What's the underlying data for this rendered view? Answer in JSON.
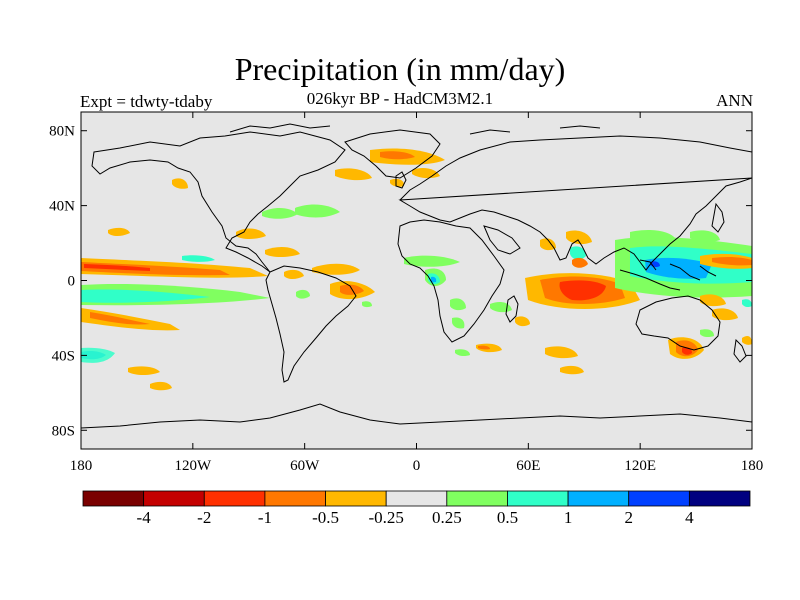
{
  "title": "Precipitation (in mm/day)",
  "subtitle": "026kyr BP - HadCM3M2.1",
  "left_label": "Expt = tdwty-tdaby",
  "right_label": "ANN",
  "colors": {
    "background": "#e6e6e6",
    "coast": "#000000"
  },
  "axes": {
    "lat_ticks": [
      {
        "value": 80,
        "label": "80N"
      },
      {
        "value": 40,
        "label": "40N"
      },
      {
        "value": 0,
        "label": "0"
      },
      {
        "value": -40,
        "label": "40S"
      },
      {
        "value": -80,
        "label": "80S"
      }
    ],
    "lon_ticks": [
      {
        "value": -180,
        "label": "180"
      },
      {
        "value": -120,
        "label": "120W"
      },
      {
        "value": -60,
        "label": "60W"
      },
      {
        "value": 0,
        "label": "0"
      },
      {
        "value": 60,
        "label": "60E"
      },
      {
        "value": 120,
        "label": "120E"
      },
      {
        "value": 180,
        "label": "180"
      }
    ]
  },
  "colorbar": {
    "colors": [
      "#7a0000",
      "#c40000",
      "#ff3000",
      "#ff7800",
      "#ffb800",
      "#e6e6e6",
      "#80ff60",
      "#30ffc8",
      "#00b0ff",
      "#0040ff",
      "#000080"
    ],
    "labels": [
      "-4",
      "-2",
      "-1",
      "-0.5",
      "-0.25",
      "0.25",
      "0.5",
      "1",
      "2",
      "4"
    ]
  }
}
